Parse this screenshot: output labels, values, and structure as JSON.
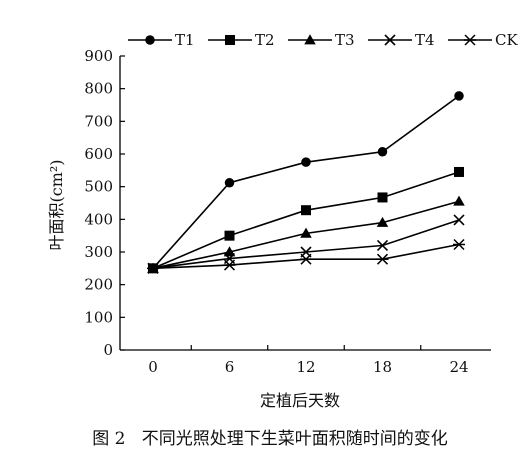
{
  "chart_data": {
    "type": "line",
    "x": [
      0,
      6,
      12,
      18,
      24
    ],
    "xlabel": "定植后天数",
    "ylabel": "叶面积(cm²)",
    "ylim": [
      0,
      900
    ],
    "yticks": [
      0,
      100,
      200,
      300,
      400,
      500,
      600,
      700,
      800,
      900
    ],
    "xticks": [
      0,
      6,
      12,
      18,
      24
    ],
    "caption": "图 2   不同光照处理下生菜叶面积随时间的变化",
    "legend_position": "top",
    "grid": false,
    "series": [
      {
        "name": "T1",
        "marker": "circle",
        "values": [
          250,
          512,
          575,
          607,
          778
        ]
      },
      {
        "name": "T2",
        "marker": "square",
        "values": [
          250,
          350,
          428,
          467,
          545
        ]
      },
      {
        "name": "T3",
        "marker": "triangle",
        "values": [
          250,
          300,
          357,
          390,
          455
        ]
      },
      {
        "name": "T4",
        "marker": "x",
        "values": [
          250,
          280,
          300,
          320,
          398
        ]
      },
      {
        "name": "CK",
        "marker": "asterisk",
        "values": [
          250,
          260,
          278,
          278,
          323
        ]
      }
    ],
    "colors": {
      "line": "#000000",
      "text": "#111111"
    }
  }
}
